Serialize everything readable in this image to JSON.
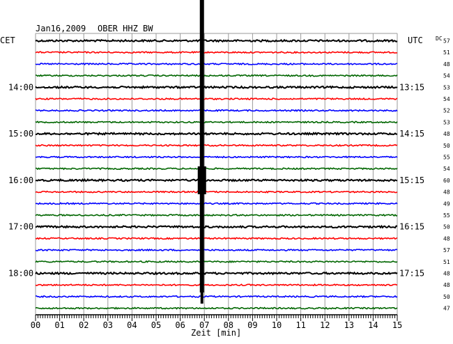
{
  "header": {
    "date": "Jan16,2009",
    "station": "OBER HHZ BW"
  },
  "chart_data": {
    "type": "line",
    "title": "",
    "left_timezone": "CET",
    "right_timezone": "UTC",
    "dc_label": "DC",
    "xlabel": "Zeit [min]",
    "xlim": [
      0,
      15
    ],
    "x_ticks": [
      "00",
      "01",
      "02",
      "03",
      "04",
      "05",
      "06",
      "07",
      "08",
      "09",
      "10",
      "11",
      "12",
      "13",
      "14",
      "15"
    ],
    "trace_colors": [
      "#000000",
      "#ff0000",
      "#0000ff",
      "#006600"
    ],
    "traces_per_hour": 4,
    "left_hour_labels": [
      "14:00",
      "15:00",
      "16:00",
      "17:00",
      "18:00"
    ],
    "right_hour_labels": [
      "13:15",
      "14:15",
      "15:15",
      "16:15",
      "17:15"
    ],
    "hour_label_trace_index": [
      4,
      8,
      12,
      16,
      20
    ],
    "dc_values": [
      57,
      51,
      48,
      54,
      53,
      54,
      52,
      53,
      48,
      50,
      55,
      54,
      60,
      48,
      49,
      55,
      50,
      48,
      57,
      51,
      48,
      48,
      50,
      47
    ],
    "event": {
      "minute": 6.9,
      "strongest_trace": 12
    }
  }
}
